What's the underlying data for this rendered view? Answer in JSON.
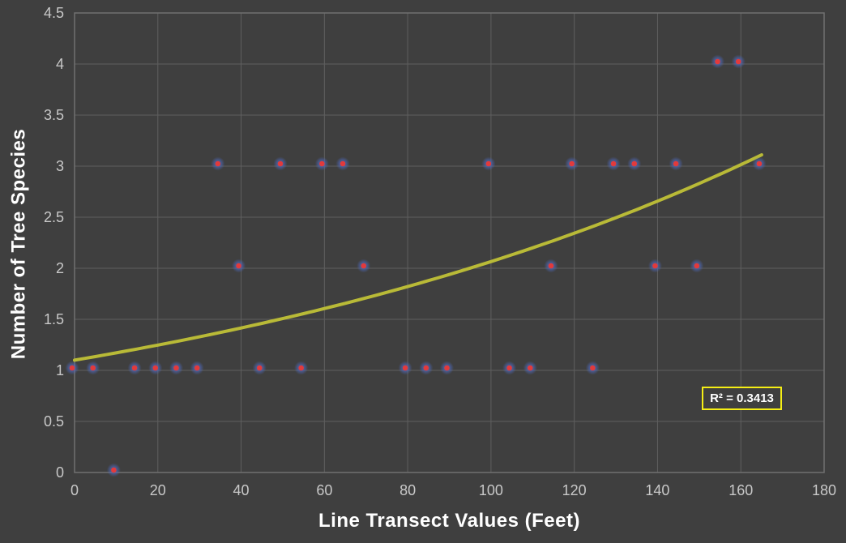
{
  "chart_data": {
    "type": "scatter",
    "title": "",
    "xlabel": "Line Transect Values (Feet)",
    "ylabel": "Number of Tree Species",
    "xlim": [
      0,
      180
    ],
    "ylim": [
      0,
      4.5
    ],
    "x_ticks": [
      0,
      20,
      40,
      60,
      80,
      100,
      120,
      140,
      160,
      180
    ],
    "y_ticks": [
      0,
      0.5,
      1,
      1.5,
      2,
      2.5,
      3,
      3.5,
      4,
      4.5
    ],
    "grid": true,
    "legend": false,
    "series": [
      {
        "name": "Number of Tree Species",
        "points": [
          [
            0,
            1
          ],
          [
            5,
            1
          ],
          [
            10,
            0
          ],
          [
            15,
            1
          ],
          [
            20,
            1
          ],
          [
            25,
            1
          ],
          [
            30,
            1
          ],
          [
            35,
            3
          ],
          [
            40,
            2
          ],
          [
            45,
            1
          ],
          [
            50,
            3
          ],
          [
            55,
            1
          ],
          [
            60,
            3
          ],
          [
            65,
            3
          ],
          [
            70,
            2
          ],
          [
            80,
            1
          ],
          [
            85,
            1
          ],
          [
            90,
            1
          ],
          [
            100,
            3
          ],
          [
            105,
            1
          ],
          [
            110,
            1
          ],
          [
            115,
            2
          ],
          [
            120,
            3
          ],
          [
            125,
            1
          ],
          [
            130,
            3
          ],
          [
            135,
            3
          ],
          [
            140,
            2
          ],
          [
            145,
            3
          ],
          [
            150,
            2
          ],
          [
            155,
            4
          ],
          [
            160,
            4
          ],
          [
            165,
            3
          ]
        ]
      }
    ],
    "trendline": {
      "type": "exponential",
      "a": 1.1,
      "b": 0.0063,
      "x_start": 0,
      "x_end": 165
    },
    "annotation": {
      "r_squared_label": "R² = 0.3413"
    },
    "colors": {
      "background": "#3f3f3f",
      "gridline": "#5f5f5f",
      "plot_border": "#707070",
      "tick_label": "#c8c8c8",
      "axis_title": "#ffffff",
      "marker_core": "#e23a3c",
      "marker_halo": "#4e69bd",
      "trendline": "#b9ba37",
      "annotation_border": "#f5ee15",
      "annotation_text": "#ffffff"
    }
  }
}
